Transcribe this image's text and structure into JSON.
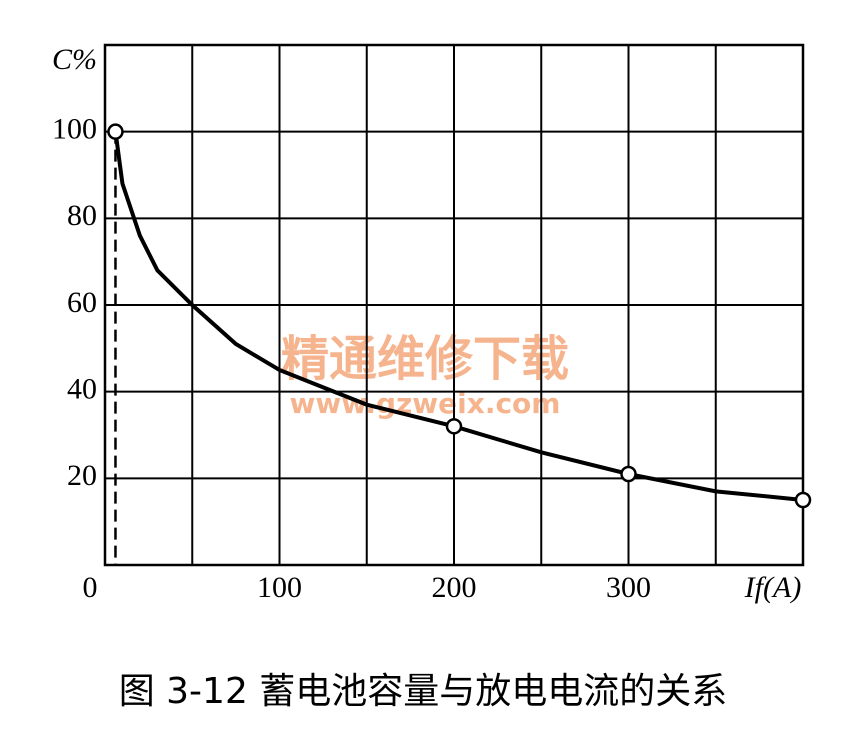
{
  "chart_data": {
    "type": "line",
    "title": "图 3-12    蓄电池容量与放电电流的关系",
    "watermark": [
      "精通维修下载",
      "www.gzweix.com"
    ],
    "x": [
      6,
      10,
      20,
      30,
      50,
      75,
      100,
      150,
      200,
      250,
      300,
      350,
      400
    ],
    "values": [
      100,
      88,
      76,
      68,
      60,
      51,
      45,
      37,
      32,
      26,
      21,
      17,
      15
    ],
    "markers": [
      true,
      false,
      false,
      false,
      false,
      false,
      false,
      false,
      true,
      false,
      true,
      false,
      true
    ],
    "dropline": true,
    "color": "#000000",
    "xlim": [
      0,
      400
    ],
    "ylim": [
      0,
      120
    ],
    "xticks": [
      0,
      100,
      200,
      300,
      {
        "value": 400,
        "label": "If(A)"
      }
    ],
    "x_grid": [
      50,
      100,
      150,
      200,
      250,
      300,
      350
    ],
    "yticks": [
      20,
      40,
      60,
      80,
      100,
      {
        "value": 120,
        "label": "C%"
      }
    ],
    "grid": true
  }
}
